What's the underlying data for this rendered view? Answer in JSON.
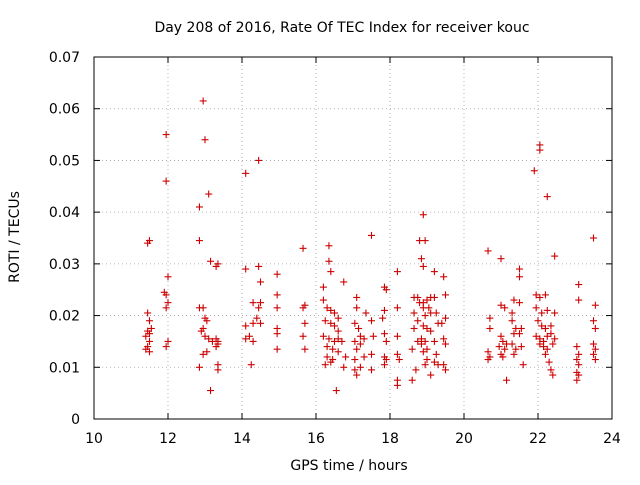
{
  "chart_data": {
    "type": "scatter",
    "title": "Day 208 of 2016, Rate Of TEC Index for receiver kouc",
    "xlabel": "GPS time / hours",
    "ylabel": "ROTI / TECUs",
    "xlim": [
      10,
      24
    ],
    "ylim": [
      0,
      0.07
    ],
    "xticks": [
      10,
      12,
      14,
      16,
      18,
      20,
      22,
      24
    ],
    "xtick_labels": [
      "10",
      "12",
      "14",
      "16",
      "18",
      "20",
      "22",
      "24"
    ],
    "yticks": [
      0,
      0.01,
      0.02,
      0.03,
      0.04,
      0.05,
      0.06,
      0.07
    ],
    "ytick_labels": [
      "0",
      "0.01",
      "0.02",
      "0.03",
      "0.04",
      "0.05",
      "0.06",
      "0.07"
    ],
    "grid": true,
    "marker": "+",
    "color": "#cc0000",
    "series": [
      {
        "name": "ROTI",
        "points": [
          [
            11.45,
            0.034
          ],
          [
            11.5,
            0.0345
          ],
          [
            11.45,
            0.0205
          ],
          [
            11.5,
            0.019
          ],
          [
            11.45,
            0.017
          ],
          [
            11.5,
            0.0165
          ],
          [
            11.4,
            0.016
          ],
          [
            11.5,
            0.015
          ],
          [
            11.45,
            0.014
          ],
          [
            11.5,
            0.013
          ],
          [
            11.4,
            0.0135
          ],
          [
            11.55,
            0.0175
          ],
          [
            11.95,
            0.055
          ],
          [
            11.95,
            0.046
          ],
          [
            12.0,
            0.0275
          ],
          [
            11.95,
            0.024
          ],
          [
            12.0,
            0.0225
          ],
          [
            11.95,
            0.0215
          ],
          [
            12.0,
            0.015
          ],
          [
            11.95,
            0.014
          ],
          [
            11.9,
            0.0245
          ],
          [
            12.85,
            0.041
          ],
          [
            12.85,
            0.0345
          ],
          [
            12.95,
            0.0615
          ],
          [
            13.0,
            0.054
          ],
          [
            13.1,
            0.0435
          ],
          [
            13.15,
            0.0305
          ],
          [
            13.3,
            0.0295
          ],
          [
            13.35,
            0.03
          ],
          [
            12.85,
            0.0215
          ],
          [
            12.95,
            0.0215
          ],
          [
            13.0,
            0.0195
          ],
          [
            13.05,
            0.019
          ],
          [
            12.95,
            0.0175
          ],
          [
            12.9,
            0.017
          ],
          [
            13.0,
            0.016
          ],
          [
            13.1,
            0.0155
          ],
          [
            13.2,
            0.015
          ],
          [
            13.3,
            0.0155
          ],
          [
            13.35,
            0.015
          ],
          [
            13.3,
            0.014
          ],
          [
            13.35,
            0.0145
          ],
          [
            13.05,
            0.013
          ],
          [
            12.95,
            0.0125
          ],
          [
            12.85,
            0.01
          ],
          [
            13.35,
            0.0105
          ],
          [
            13.35,
            0.0095
          ],
          [
            13.15,
            0.0055
          ],
          [
            14.1,
            0.0475
          ],
          [
            14.45,
            0.05
          ],
          [
            14.1,
            0.029
          ],
          [
            14.45,
            0.0295
          ],
          [
            14.5,
            0.0265
          ],
          [
            14.3,
            0.0225
          ],
          [
            14.45,
            0.0215
          ],
          [
            14.1,
            0.018
          ],
          [
            14.2,
            0.016
          ],
          [
            14.3,
            0.0185
          ],
          [
            14.4,
            0.0195
          ],
          [
            14.5,
            0.0185
          ],
          [
            14.1,
            0.0155
          ],
          [
            14.3,
            0.015
          ],
          [
            14.25,
            0.0105
          ],
          [
            14.5,
            0.0225
          ],
          [
            14.95,
            0.028
          ],
          [
            14.95,
            0.024
          ],
          [
            14.95,
            0.0215
          ],
          [
            14.95,
            0.0175
          ],
          [
            14.95,
            0.0165
          ],
          [
            14.95,
            0.0135
          ],
          [
            15.65,
            0.033
          ],
          [
            15.7,
            0.022
          ],
          [
            15.65,
            0.0215
          ],
          [
            15.7,
            0.0185
          ],
          [
            15.65,
            0.016
          ],
          [
            15.7,
            0.0135
          ],
          [
            16.2,
            0.0255
          ],
          [
            16.35,
            0.0335
          ],
          [
            16.35,
            0.0305
          ],
          [
            16.4,
            0.0285
          ],
          [
            16.2,
            0.023
          ],
          [
            16.3,
            0.0215
          ],
          [
            16.4,
            0.021
          ],
          [
            16.5,
            0.0205
          ],
          [
            16.25,
            0.019
          ],
          [
            16.4,
            0.0185
          ],
          [
            16.5,
            0.018
          ],
          [
            16.6,
            0.017
          ],
          [
            16.2,
            0.016
          ],
          [
            16.35,
            0.0155
          ],
          [
            16.5,
            0.015
          ],
          [
            16.6,
            0.0155
          ],
          [
            16.3,
            0.014
          ],
          [
            16.45,
            0.0135
          ],
          [
            16.6,
            0.013
          ],
          [
            16.3,
            0.012
          ],
          [
            16.45,
            0.0115
          ],
          [
            16.25,
            0.0105
          ],
          [
            16.4,
            0.011
          ],
          [
            16.55,
            0.0055
          ],
          [
            16.75,
            0.0265
          ],
          [
            16.6,
            0.0195
          ],
          [
            16.7,
            0.015
          ],
          [
            16.8,
            0.012
          ],
          [
            16.75,
            0.01
          ],
          [
            17.1,
            0.0235
          ],
          [
            17.1,
            0.0215
          ],
          [
            17.05,
            0.0185
          ],
          [
            17.15,
            0.0175
          ],
          [
            17.2,
            0.016
          ],
          [
            17.3,
            0.0155
          ],
          [
            17.05,
            0.015
          ],
          [
            17.2,
            0.0145
          ],
          [
            17.1,
            0.0135
          ],
          [
            17.3,
            0.012
          ],
          [
            17.05,
            0.0115
          ],
          [
            17.2,
            0.01
          ],
          [
            17.05,
            0.0095
          ],
          [
            17.1,
            0.0085
          ],
          [
            17.35,
            0.0205
          ],
          [
            17.5,
            0.0355
          ],
          [
            17.5,
            0.019
          ],
          [
            17.55,
            0.016
          ],
          [
            17.5,
            0.0125
          ],
          [
            17.5,
            0.0095
          ],
          [
            17.85,
            0.0255
          ],
          [
            17.9,
            0.025
          ],
          [
            17.85,
            0.021
          ],
          [
            17.8,
            0.0195
          ],
          [
            17.85,
            0.0165
          ],
          [
            17.9,
            0.015
          ],
          [
            17.85,
            0.012
          ],
          [
            17.9,
            0.0115
          ],
          [
            17.85,
            0.0105
          ],
          [
            18.2,
            0.0285
          ],
          [
            18.2,
            0.0215
          ],
          [
            18.2,
            0.016
          ],
          [
            18.2,
            0.0125
          ],
          [
            18.25,
            0.0115
          ],
          [
            18.2,
            0.0075
          ],
          [
            18.2,
            0.0065
          ],
          [
            18.65,
            0.0235
          ],
          [
            18.75,
            0.0235
          ],
          [
            18.8,
            0.0225
          ],
          [
            18.65,
            0.0205
          ],
          [
            18.75,
            0.019
          ],
          [
            18.65,
            0.0175
          ],
          [
            18.75,
            0.015
          ],
          [
            18.6,
            0.0135
          ],
          [
            18.7,
            0.0095
          ],
          [
            18.6,
            0.0075
          ],
          [
            18.9,
            0.0395
          ],
          [
            18.8,
            0.0345
          ],
          [
            18.95,
            0.0345
          ],
          [
            18.85,
            0.031
          ],
          [
            18.9,
            0.0295
          ],
          [
            18.9,
            0.0225
          ],
          [
            19.0,
            0.023
          ],
          [
            19.1,
            0.0235
          ],
          [
            18.9,
            0.0215
          ],
          [
            19.05,
            0.0215
          ],
          [
            18.95,
            0.02
          ],
          [
            19.1,
            0.0205
          ],
          [
            18.9,
            0.018
          ],
          [
            19.0,
            0.0175
          ],
          [
            19.1,
            0.017
          ],
          [
            18.85,
            0.0155
          ],
          [
            18.95,
            0.015
          ],
          [
            18.85,
            0.0145
          ],
          [
            19.0,
            0.0135
          ],
          [
            18.9,
            0.013
          ],
          [
            19.0,
            0.0115
          ],
          [
            18.95,
            0.0105
          ],
          [
            19.1,
            0.0085
          ],
          [
            19.2,
            0.0285
          ],
          [
            19.2,
            0.0235
          ],
          [
            19.25,
            0.0205
          ],
          [
            19.3,
            0.0185
          ],
          [
            19.2,
            0.015
          ],
          [
            19.25,
            0.0125
          ],
          [
            19.2,
            0.011
          ],
          [
            19.3,
            0.0105
          ],
          [
            19.45,
            0.0275
          ],
          [
            19.5,
            0.024
          ],
          [
            19.5,
            0.0195
          ],
          [
            19.4,
            0.0185
          ],
          [
            19.45,
            0.0155
          ],
          [
            19.5,
            0.0145
          ],
          [
            19.45,
            0.0105
          ],
          [
            19.5,
            0.0095
          ],
          [
            20.65,
            0.0325
          ],
          [
            20.7,
            0.0195
          ],
          [
            20.7,
            0.0175
          ],
          [
            20.65,
            0.013
          ],
          [
            20.7,
            0.012
          ],
          [
            20.65,
            0.0115
          ],
          [
            21.0,
            0.031
          ],
          [
            21.0,
            0.022
          ],
          [
            21.1,
            0.0215
          ],
          [
            21.0,
            0.016
          ],
          [
            21.05,
            0.015
          ],
          [
            21.15,
            0.0145
          ],
          [
            20.95,
            0.014
          ],
          [
            21.1,
            0.0135
          ],
          [
            21.0,
            0.0125
          ],
          [
            21.05,
            0.012
          ],
          [
            21.15,
            0.0075
          ],
          [
            21.35,
            0.023
          ],
          [
            21.3,
            0.0205
          ],
          [
            21.3,
            0.019
          ],
          [
            21.4,
            0.0175
          ],
          [
            21.35,
            0.0165
          ],
          [
            21.3,
            0.0145
          ],
          [
            21.4,
            0.0135
          ],
          [
            21.35,
            0.0125
          ],
          [
            21.5,
            0.029
          ],
          [
            21.5,
            0.0275
          ],
          [
            21.5,
            0.0225
          ],
          [
            21.55,
            0.0175
          ],
          [
            21.5,
            0.0165
          ],
          [
            21.55,
            0.014
          ],
          [
            21.6,
            0.0105
          ],
          [
            21.9,
            0.048
          ],
          [
            22.05,
            0.053
          ],
          [
            22.05,
            0.052
          ],
          [
            22.25,
            0.043
          ],
          [
            22.45,
            0.0315
          ],
          [
            21.95,
            0.024
          ],
          [
            22.05,
            0.0235
          ],
          [
            22.2,
            0.024
          ],
          [
            21.95,
            0.0215
          ],
          [
            22.1,
            0.0205
          ],
          [
            22.25,
            0.021
          ],
          [
            22.0,
            0.019
          ],
          [
            22.1,
            0.018
          ],
          [
            22.2,
            0.0175
          ],
          [
            22.35,
            0.018
          ],
          [
            21.95,
            0.016
          ],
          [
            22.05,
            0.0155
          ],
          [
            22.15,
            0.015
          ],
          [
            22.25,
            0.016
          ],
          [
            22.35,
            0.0165
          ],
          [
            22.45,
            0.0155
          ],
          [
            22.05,
            0.0145
          ],
          [
            22.15,
            0.014
          ],
          [
            22.25,
            0.0135
          ],
          [
            22.4,
            0.0145
          ],
          [
            22.2,
            0.0125
          ],
          [
            22.3,
            0.011
          ],
          [
            22.35,
            0.0095
          ],
          [
            22.4,
            0.0085
          ],
          [
            22.45,
            0.0205
          ],
          [
            23.1,
            0.026
          ],
          [
            23.1,
            0.023
          ],
          [
            23.05,
            0.014
          ],
          [
            23.1,
            0.0125
          ],
          [
            23.05,
            0.0115
          ],
          [
            23.1,
            0.0105
          ],
          [
            23.05,
            0.009
          ],
          [
            23.1,
            0.0085
          ],
          [
            23.05,
            0.0075
          ],
          [
            23.5,
            0.035
          ],
          [
            23.55,
            0.022
          ],
          [
            23.5,
            0.019
          ],
          [
            23.55,
            0.0175
          ],
          [
            23.5,
            0.0145
          ],
          [
            23.55,
            0.0135
          ],
          [
            23.5,
            0.0125
          ],
          [
            23.55,
            0.0115
          ]
        ]
      }
    ]
  }
}
